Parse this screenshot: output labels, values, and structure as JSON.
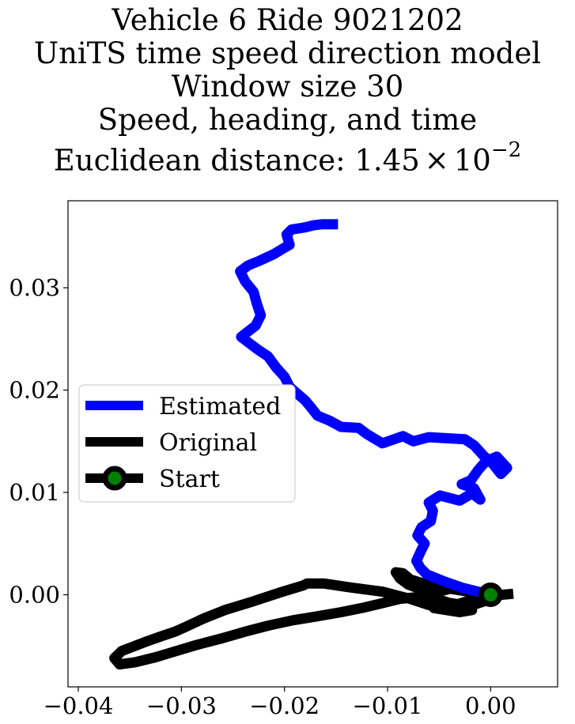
{
  "chart_data": {
    "type": "line",
    "title_lines": [
      "Vehicle 6 Ride 9021202",
      "UniTS time speed direction model",
      "Window size 30",
      "Speed, heading, and time"
    ],
    "title_metric_prefix": "Euclidean distance: 1.45",
    "title_metric_times": "×",
    "title_metric_base": "10",
    "title_metric_exponent": "−2",
    "xlabel": "",
    "ylabel": "",
    "xlim": [
      -0.041,
      0.0065
    ],
    "ylim": [
      -0.009,
      0.0385
    ],
    "xticks": [
      -0.04,
      -0.03,
      -0.02,
      -0.01,
      0.0
    ],
    "xtick_labels": [
      "−0.04",
      "−0.03",
      "−0.02",
      "−0.01",
      "0.00"
    ],
    "yticks": [
      0.0,
      0.01,
      0.02,
      0.03
    ],
    "ytick_labels": [
      "0.00",
      "0.01",
      "0.02",
      "0.03"
    ],
    "grid": false,
    "legend_position": "center-left",
    "series": [
      {
        "name": "Estimated",
        "color": "#0000ff",
        "points": [
          [
            0.0,
            0.0
          ],
          [
            -0.0028,
            0.0007
          ],
          [
            -0.0045,
            0.0013
          ],
          [
            -0.0062,
            0.002
          ],
          [
            -0.0068,
            0.0026
          ],
          [
            -0.0072,
            0.0033
          ],
          [
            -0.0068,
            0.0042
          ],
          [
            -0.0064,
            0.005
          ],
          [
            -0.0071,
            0.0058
          ],
          [
            -0.0067,
            0.0066
          ],
          [
            -0.0058,
            0.0072
          ],
          [
            -0.0056,
            0.0082
          ],
          [
            -0.006,
            0.009
          ],
          [
            -0.0049,
            0.0097
          ],
          [
            -0.003,
            0.0092
          ],
          [
            -0.0018,
            0.0099
          ],
          [
            -0.001,
            0.0093
          ],
          [
            -0.0016,
            0.0104
          ],
          [
            -0.0028,
            0.0108
          ],
          [
            -0.0019,
            0.0112
          ],
          [
            -0.0012,
            0.0122
          ],
          [
            -0.0005,
            0.013
          ],
          [
            0.0006,
            0.0135
          ],
          [
            0.0016,
            0.0124
          ],
          [
            0.001,
            0.0118
          ],
          [
            0.0002,
            0.0128
          ],
          [
            -0.0007,
            0.0136
          ],
          [
            -0.0016,
            0.0146
          ],
          [
            -0.0025,
            0.0152
          ],
          [
            -0.006,
            0.0154
          ],
          [
            -0.0075,
            0.015
          ],
          [
            -0.0085,
            0.0155
          ],
          [
            -0.0105,
            0.0148
          ],
          [
            -0.012,
            0.0157
          ],
          [
            -0.0128,
            0.0163
          ],
          [
            -0.0145,
            0.0164
          ],
          [
            -0.0156,
            0.017
          ],
          [
            -0.0168,
            0.0175
          ],
          [
            -0.0175,
            0.0184
          ],
          [
            -0.018,
            0.019
          ],
          [
            -0.0187,
            0.0196
          ],
          [
            -0.0195,
            0.0203
          ],
          [
            -0.02,
            0.0213
          ],
          [
            -0.0208,
            0.0222
          ],
          [
            -0.0216,
            0.0233
          ],
          [
            -0.0225,
            0.0239
          ],
          [
            -0.0233,
            0.0245
          ],
          [
            -0.0242,
            0.0252
          ],
          [
            -0.0228,
            0.0263
          ],
          [
            -0.0223,
            0.0273
          ],
          [
            -0.0227,
            0.0285
          ],
          [
            -0.023,
            0.0296
          ],
          [
            -0.0238,
            0.0306
          ],
          [
            -0.0243,
            0.0316
          ],
          [
            -0.0235,
            0.0322
          ],
          [
            -0.0225,
            0.0326
          ],
          [
            -0.021,
            0.0333
          ],
          [
            -0.0202,
            0.0338
          ],
          [
            -0.0195,
            0.0342
          ],
          [
            -0.0198,
            0.0352
          ],
          [
            -0.0193,
            0.0357
          ],
          [
            -0.018,
            0.0359
          ],
          [
            -0.0172,
            0.0361
          ],
          [
            -0.0164,
            0.0362
          ],
          [
            -0.0148,
            0.0362
          ]
        ]
      },
      {
        "name": "Original",
        "color": "#000000",
        "points": [
          [
            0.0022,
            0.0001
          ],
          [
            0.0,
            -0.0001
          ],
          [
            -0.0015,
            -0.0004
          ],
          [
            -0.0028,
            -0.0008
          ],
          [
            -0.0041,
            -0.0012
          ],
          [
            -0.006,
            -0.001
          ],
          [
            -0.0078,
            -0.0004
          ],
          [
            -0.0105,
            0.0003
          ],
          [
            -0.0135,
            0.0007
          ],
          [
            -0.0162,
            0.0011
          ],
          [
            -0.0178,
            0.0011
          ],
          [
            -0.0182,
            0.0009
          ],
          [
            -0.0205,
            0.0002
          ],
          [
            -0.0232,
            -0.0007
          ],
          [
            -0.0258,
            -0.0015
          ],
          [
            -0.0278,
            -0.0023
          ],
          [
            -0.0295,
            -0.0031
          ],
          [
            -0.0306,
            -0.0036
          ],
          [
            -0.0318,
            -0.004
          ],
          [
            -0.0332,
            -0.0045
          ],
          [
            -0.0345,
            -0.005
          ],
          [
            -0.0358,
            -0.0055
          ],
          [
            -0.0365,
            -0.0062
          ],
          [
            -0.036,
            -0.0068
          ],
          [
            -0.0345,
            -0.0066
          ],
          [
            -0.0325,
            -0.0061
          ],
          [
            -0.0305,
            -0.0055
          ],
          [
            -0.0285,
            -0.0049
          ],
          [
            -0.0262,
            -0.0043
          ],
          [
            -0.0238,
            -0.0036
          ],
          [
            -0.0215,
            -0.003
          ],
          [
            -0.0192,
            -0.0025
          ],
          [
            -0.0168,
            -0.0021
          ],
          [
            -0.0145,
            -0.0017
          ],
          [
            -0.0125,
            -0.0013
          ],
          [
            -0.0108,
            -0.0009
          ],
          [
            -0.0088,
            -0.0004
          ],
          [
            -0.0068,
            -0.0002
          ],
          [
            -0.005,
            -0.0007
          ],
          [
            -0.0032,
            -0.0012
          ],
          [
            -0.0018,
            -0.0015
          ],
          [
            -0.003,
            -0.0017
          ],
          [
            -0.0055,
            -0.0013
          ],
          [
            -0.0062,
            -0.0005
          ],
          [
            -0.005,
            0.0003
          ],
          [
            -0.0035,
            0.0007
          ],
          [
            -0.002,
            0.0004
          ],
          [
            -0.0008,
            0.0
          ],
          [
            -0.0005,
            -0.0006
          ],
          [
            -0.002,
            -0.0011
          ],
          [
            -0.004,
            -0.0008
          ],
          [
            -0.0056,
            -0.0003
          ],
          [
            -0.0062,
            0.0004
          ],
          [
            -0.0072,
            0.0007
          ],
          [
            -0.008,
            0.001
          ],
          [
            -0.0088,
            0.0016
          ],
          [
            -0.0092,
            0.0022
          ],
          [
            -0.0085,
            0.0021
          ],
          [
            -0.0078,
            0.0015
          ],
          [
            -0.0062,
            0.001
          ],
          [
            -0.004,
            0.0006
          ],
          [
            -0.0015,
            0.0002
          ],
          [
            0.0,
            0.0
          ]
        ]
      }
    ],
    "start_marker": {
      "name": "Start",
      "point": [
        0.0,
        0.0
      ],
      "edge_color": "#000000",
      "face_color": "#008000"
    }
  }
}
